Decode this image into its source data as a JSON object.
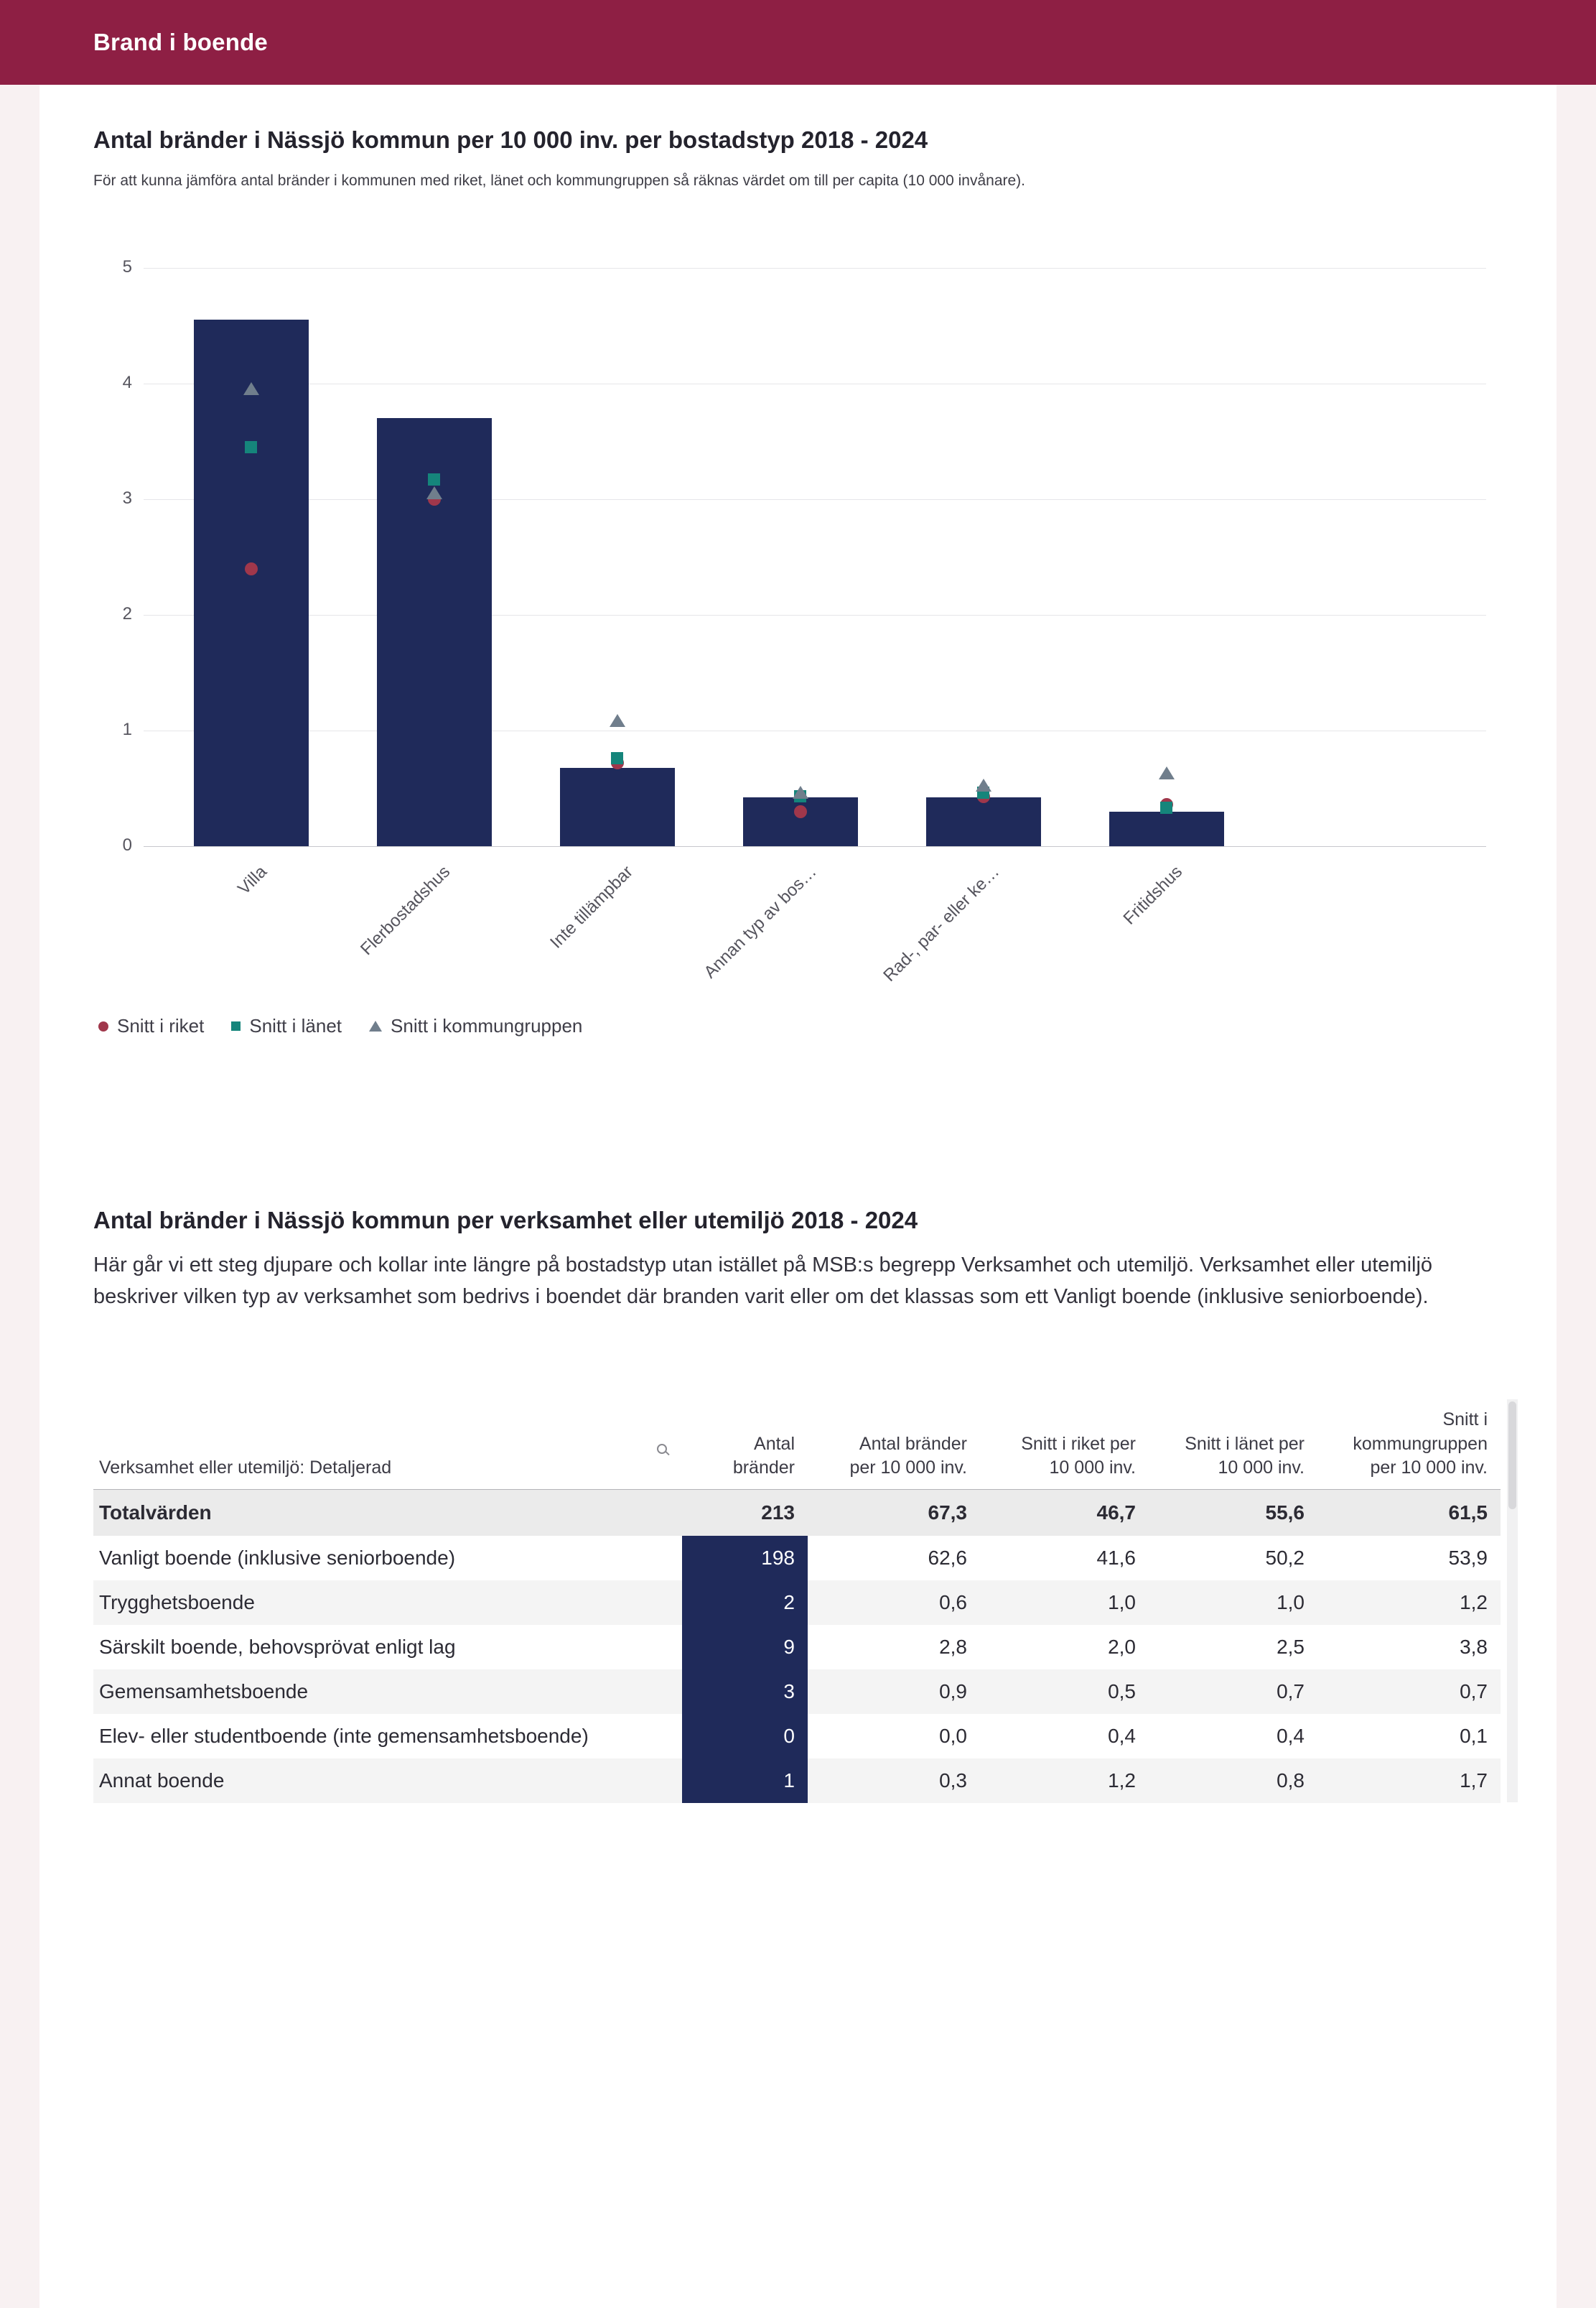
{
  "header": {
    "title": "Brand i boende"
  },
  "section1": {
    "title": "Antal bränder i Nässjö kommun per 10 000 inv. per bostadstyp 2018 - 2024",
    "subtitle": "För att kunna jämföra antal bränder i kommunen med riket, länet och kommungruppen så räknas värdet om till per capita (10 000 invånare)."
  },
  "chart_data": {
    "type": "bar",
    "title": "Antal bränder i Nässjö kommun per 10 000 inv. per bostadstyp 2018 - 2024",
    "categories": [
      "Villa",
      "Flerbostadshus",
      "Inte tillämpbar",
      "Annan typ av bos…",
      "Rad-, par- eller ke…",
      "Fritidshus"
    ],
    "values": [
      4.55,
      3.7,
      0.68,
      0.42,
      0.42,
      0.3
    ],
    "ylim": [
      0,
      5
    ],
    "yticks": [
      0,
      1,
      2,
      3,
      4,
      5
    ],
    "grid": true,
    "bar_color": "#1f2a5a",
    "legend_position": "bottom",
    "markers": [
      {
        "name": "Snitt i riket",
        "shape": "circle",
        "color": "#a0374b",
        "values": [
          2.4,
          3.0,
          0.72,
          0.3,
          0.43,
          0.36
        ]
      },
      {
        "name": "Snitt i länet",
        "shape": "square",
        "color": "#15857b",
        "values": [
          3.45,
          3.17,
          0.76,
          0.43,
          0.46,
          0.33
        ]
      },
      {
        "name": "Snitt i kommungruppen",
        "shape": "triangle",
        "color": "#707e8c",
        "values": [
          3.95,
          3.05,
          1.08,
          0.46,
          0.52,
          0.63
        ]
      }
    ]
  },
  "section2": {
    "title": "Antal bränder i Nässjö kommun per verksamhet eller utemiljö 2018 - 2024",
    "description": "Här går vi ett steg djupare och kollar inte längre på bostadstyp utan istället på MSB:s begrepp Verksamhet och utemiljö. Verksamhet eller utemiljö beskriver vilken typ av verksamhet som bedrivs i boendet där branden varit eller om det klassas som ett Vanligt boende (inklusive seniorboende)."
  },
  "table": {
    "columns": [
      "Verksamhet eller utemiljö: Detaljerad",
      "Antal\nbränder",
      "Antal bränder\nper 10 000 inv.",
      "Snitt i riket per\n10 000 inv.",
      "Snitt i länet per\n10 000 inv.",
      "Snitt i\nkommungruppen\nper 10 000 inv."
    ],
    "search_icon": "search-icon",
    "value_cell_color": "#1f2a5a",
    "total_row": {
      "label": "Totalvärden",
      "values": [
        "213",
        "67,3",
        "46,7",
        "55,6",
        "61,5"
      ]
    },
    "rows": [
      {
        "label": "Vanligt boende (inklusive seniorboende)",
        "values": [
          "198",
          "62,6",
          "41,6",
          "50,2",
          "53,9"
        ]
      },
      {
        "label": "Trygghetsboende",
        "values": [
          "2",
          "0,6",
          "1,0",
          "1,0",
          "1,2"
        ]
      },
      {
        "label": "Särskilt boende, behovsprövat enligt lag",
        "values": [
          "9",
          "2,8",
          "2,0",
          "2,5",
          "3,8"
        ]
      },
      {
        "label": "Gemensamhetsboende",
        "values": [
          "3",
          "0,9",
          "0,5",
          "0,7",
          "0,7"
        ]
      },
      {
        "label": "Elev- eller studentboende (inte gemensamhetsboende)",
        "values": [
          "0",
          "0,0",
          "0,4",
          "0,4",
          "0,1"
        ]
      },
      {
        "label": "Annat boende",
        "values": [
          "1",
          "0,3",
          "1,2",
          "0,8",
          "1,7"
        ]
      }
    ]
  }
}
